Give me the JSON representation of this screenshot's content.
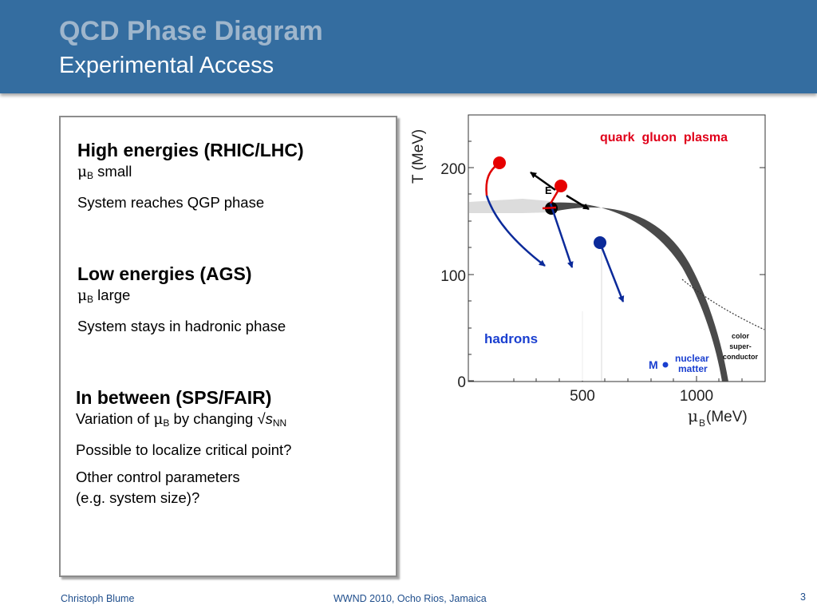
{
  "header": {
    "title": "QCD Phase Diagram",
    "subtitle": "Experimental Access"
  },
  "sections": {
    "high": {
      "heading": "High energies (RHIC/LHC)",
      "mu_symbol": "μ",
      "mu_sub": "B",
      "mu_text": " small",
      "line2": "System reaches QGP phase"
    },
    "low": {
      "heading": "Low energies (AGS)",
      "mu_symbol": "μ",
      "mu_sub": "B",
      "mu_text": " large",
      "line2": "System stays in hadronic phase"
    },
    "between": {
      "heading": "In between (SPS/FAIR)",
      "line1_prefix": "Variation of ",
      "mu_symbol": "μ",
      "mu_sub": "B",
      "line1_mid": " by changing √",
      "s_symbol": "s",
      "s_sub": "NN",
      "line2": "Possible to localize critical point?",
      "line3a": "Other control parameters",
      "line3b": "(e.g. system size)?"
    }
  },
  "diagram": {
    "ylabel": "T (MeV)",
    "xlabel_mu": "μ",
    "xlabel_sub": "B",
    "xlabel_unit": " (MeV)",
    "yticks": [
      "200",
      "100",
      "0"
    ],
    "xticks": [
      "500",
      "1000"
    ],
    "label_qgp": "quark  gluon  plasma",
    "label_hadrons": "hadrons",
    "label_color_1": "color",
    "label_color_2": "super-",
    "label_color_3": "conductor",
    "label_M": "M",
    "label_nuclear_1": "nuclear",
    "label_nuclear_2": "matter",
    "label_E": "E",
    "colors": {
      "qgp_text": "#e0001a",
      "hadrons_text": "#1a3fd0",
      "trajectory_red": "#e00000",
      "trajectory_blue": "#0b2a9a",
      "phase_line": "#4a4a4a"
    }
  },
  "footer": {
    "author": "Christoph Blume",
    "event": "WWND 2010, Ocho Rios, Jamaica",
    "page": "3"
  }
}
